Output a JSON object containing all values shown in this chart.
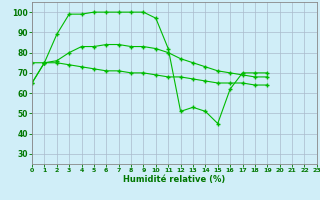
{
  "line1": {
    "x": [
      0,
      1,
      2,
      3,
      4,
      5,
      6,
      7,
      8,
      9,
      10,
      11,
      12,
      13,
      14,
      15,
      16,
      17,
      18,
      19,
      20,
      21,
      22,
      23
    ],
    "y": [
      65,
      75,
      89,
      99,
      99,
      100,
      100,
      100,
      100,
      100,
      97,
      82,
      51,
      53,
      51,
      45,
      62,
      70,
      70,
      70,
      null,
      null,
      null,
      null
    ]
  },
  "line2": {
    "x": [
      0,
      1,
      2,
      3,
      4,
      5,
      6,
      7,
      8,
      9,
      10,
      11,
      12,
      13,
      14,
      15,
      16,
      17,
      18,
      19,
      20,
      21,
      22,
      23
    ],
    "y": [
      75,
      75,
      76,
      80,
      83,
      83,
      84,
      84,
      83,
      83,
      82,
      80,
      77,
      75,
      73,
      71,
      70,
      69,
      68,
      68,
      null,
      null,
      null,
      null
    ]
  },
  "line3": {
    "x": [
      0,
      1,
      2,
      3,
      4,
      5,
      6,
      7,
      8,
      9,
      10,
      11,
      12,
      13,
      14,
      15,
      16,
      17,
      18,
      19,
      20,
      21,
      22,
      23
    ],
    "y": [
      65,
      75,
      75,
      74,
      73,
      72,
      71,
      71,
      70,
      70,
      69,
      68,
      68,
      67,
      66,
      65,
      65,
      65,
      64,
      64,
      null,
      null,
      null,
      null
    ]
  },
  "line_color": "#00bb00",
  "bg_color": "#d0eef8",
  "grid_color": "#aabbcc",
  "xlabel": "Humidité relative (%)",
  "ylim": [
    25,
    105
  ],
  "xlim": [
    0,
    23
  ],
  "yticks": [
    30,
    40,
    50,
    60,
    70,
    80,
    90,
    100
  ],
  "xticks": [
    0,
    1,
    2,
    3,
    4,
    5,
    6,
    7,
    8,
    9,
    10,
    11,
    12,
    13,
    14,
    15,
    16,
    17,
    18,
    19,
    20,
    21,
    22,
    23
  ]
}
